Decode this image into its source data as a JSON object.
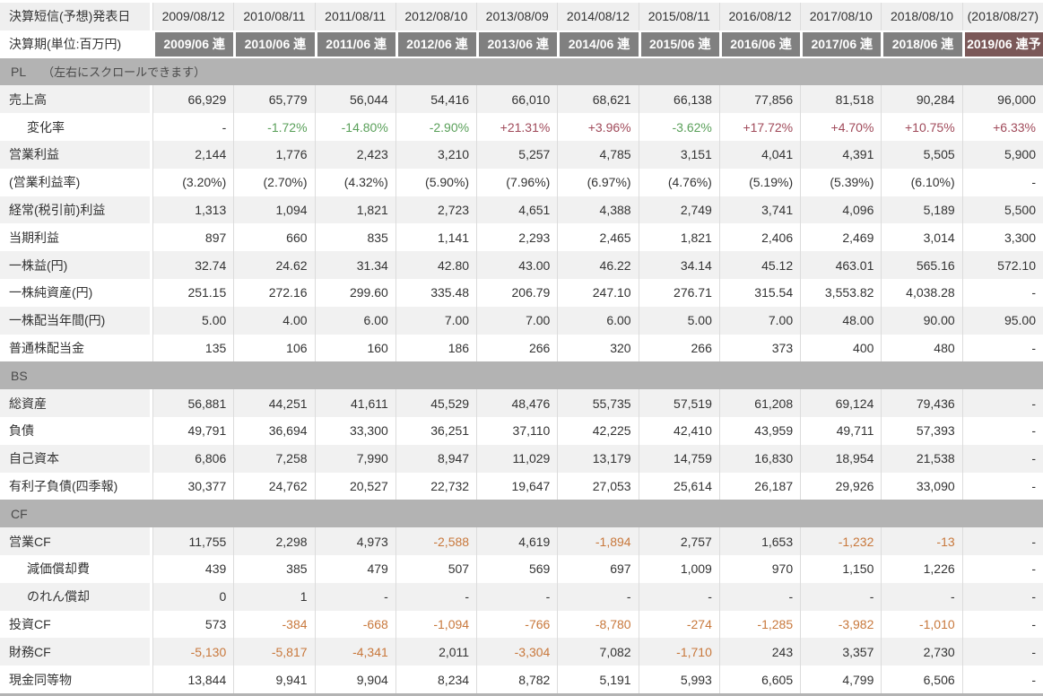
{
  "colors": {
    "text": "#333333",
    "header_dark_bg": "#808080",
    "header_forecast_bg": "#7b5858",
    "section_bar_bg": "#b3b3b3",
    "band_bg": "#f1f1f1",
    "announcement_bg": "#efefef",
    "positive_pct": "#a04a5a",
    "negative_pct": "#5aa05a",
    "negative_cf": "#c8783c"
  },
  "table": {
    "announcement": {
      "label": "決算短信(予想)発表日",
      "dates": [
        "2009/08/12",
        "2010/08/11",
        "2011/08/11",
        "2012/08/10",
        "2013/08/09",
        "2014/08/12",
        "2015/08/11",
        "2016/08/12",
        "2017/08/10",
        "2018/08/10",
        "(2018/08/27)"
      ]
    },
    "periods": {
      "label": "決算期(単位:百万円)",
      "cells": [
        "2009/06 連",
        "2010/06 連",
        "2011/06 連",
        "2012/06 連",
        "2013/06 連",
        "2014/06 連",
        "2015/06 連",
        "2016/06 連",
        "2017/06 連",
        "2018/06 連",
        "2019/06 連予"
      ],
      "forecast_index": 10
    },
    "sections": [
      {
        "id": "pl",
        "title": "PL",
        "note": "（左右にスクロールできます）",
        "rows": [
          {
            "label": "売上高",
            "indent": false,
            "style": "plain",
            "values": [
              "66,929",
              "65,779",
              "56,044",
              "54,416",
              "66,010",
              "68,621",
              "66,138",
              "77,856",
              "81,518",
              "90,284",
              "96,000"
            ]
          },
          {
            "label": "変化率",
            "indent": true,
            "style": "percent",
            "values": [
              "-",
              "-1.72%",
              "-14.80%",
              "-2.90%",
              "+21.31%",
              "+3.96%",
              "-3.62%",
              "+17.72%",
              "+4.70%",
              "+10.75%",
              "+6.33%"
            ]
          },
          {
            "label": "営業利益",
            "indent": false,
            "style": "plain",
            "values": [
              "2,144",
              "1,776",
              "2,423",
              "3,210",
              "5,257",
              "4,785",
              "3,151",
              "4,041",
              "4,391",
              "5,505",
              "5,900"
            ]
          },
          {
            "label": "(営業利益率)",
            "indent": false,
            "style": "neutral",
            "values": [
              "(3.20%)",
              "(2.70%)",
              "(4.32%)",
              "(5.90%)",
              "(7.96%)",
              "(6.97%)",
              "(4.76%)",
              "(5.19%)",
              "(5.39%)",
              "(6.10%)",
              "-"
            ]
          },
          {
            "label": "経常(税引前)利益",
            "indent": false,
            "style": "plain",
            "values": [
              "1,313",
              "1,094",
              "1,821",
              "2,723",
              "4,651",
              "4,388",
              "2,749",
              "3,741",
              "4,096",
              "5,189",
              "5,500"
            ]
          },
          {
            "label": "当期利益",
            "indent": false,
            "style": "plain",
            "values": [
              "897",
              "660",
              "835",
              "1,141",
              "2,293",
              "2,465",
              "1,821",
              "2,406",
              "2,469",
              "3,014",
              "3,300"
            ]
          },
          {
            "label": "一株益(円)",
            "indent": false,
            "style": "plain",
            "values": [
              "32.74",
              "24.62",
              "31.34",
              "42.80",
              "43.00",
              "46.22",
              "34.14",
              "45.12",
              "463.01",
              "565.16",
              "572.10"
            ]
          },
          {
            "label": "一株純資産(円)",
            "indent": false,
            "style": "plain",
            "values": [
              "251.15",
              "272.16",
              "299.60",
              "335.48",
              "206.79",
              "247.10",
              "276.71",
              "315.54",
              "3,553.82",
              "4,038.28",
              "-"
            ]
          },
          {
            "label": "一株配当年間(円)",
            "indent": false,
            "style": "plain",
            "values": [
              "5.00",
              "4.00",
              "6.00",
              "7.00",
              "7.00",
              "6.00",
              "5.00",
              "7.00",
              "48.00",
              "90.00",
              "95.00"
            ]
          },
          {
            "label": "普通株配当金",
            "indent": false,
            "style": "plain",
            "values": [
              "135",
              "106",
              "160",
              "186",
              "266",
              "320",
              "266",
              "373",
              "400",
              "480",
              "-"
            ]
          }
        ]
      },
      {
        "id": "bs",
        "title": "BS",
        "note": "",
        "rows": [
          {
            "label": "総資産",
            "indent": false,
            "style": "plain",
            "values": [
              "56,881",
              "44,251",
              "41,611",
              "45,529",
              "48,476",
              "55,735",
              "57,519",
              "61,208",
              "69,124",
              "79,436",
              "-"
            ]
          },
          {
            "label": "負債",
            "indent": false,
            "style": "plain",
            "values": [
              "49,791",
              "36,694",
              "33,300",
              "36,251",
              "37,110",
              "42,225",
              "42,410",
              "43,959",
              "49,711",
              "57,393",
              "-"
            ]
          },
          {
            "label": "自己資本",
            "indent": false,
            "style": "plain",
            "values": [
              "6,806",
              "7,258",
              "7,990",
              "8,947",
              "11,029",
              "13,179",
              "14,759",
              "16,830",
              "18,954",
              "21,538",
              "-"
            ]
          },
          {
            "label": "有利子負債(四季報)",
            "indent": false,
            "style": "plain",
            "values": [
              "30,377",
              "24,762",
              "20,527",
              "22,732",
              "19,647",
              "27,053",
              "25,614",
              "26,187",
              "29,926",
              "33,090",
              "-"
            ]
          }
        ]
      },
      {
        "id": "cf",
        "title": "CF",
        "note": "",
        "rows": [
          {
            "label": "営業CF",
            "indent": false,
            "style": "plain",
            "values": [
              "11,755",
              "2,298",
              "4,973",
              "-2,588",
              "4,619",
              "-1,894",
              "2,757",
              "1,653",
              "-1,232",
              "-13",
              "-"
            ]
          },
          {
            "label": "減価償却費",
            "indent": true,
            "style": "plain",
            "values": [
              "439",
              "385",
              "479",
              "507",
              "569",
              "697",
              "1,009",
              "970",
              "1,150",
              "1,226",
              "-"
            ]
          },
          {
            "label": "のれん償却",
            "indent": true,
            "style": "plain",
            "values": [
              "0",
              "1",
              "-",
              "-",
              "-",
              "-",
              "-",
              "-",
              "-",
              "-",
              "-"
            ]
          },
          {
            "label": "投資CF",
            "indent": false,
            "style": "plain",
            "values": [
              "573",
              "-384",
              "-668",
              "-1,094",
              "-766",
              "-8,780",
              "-274",
              "-1,285",
              "-3,982",
              "-1,010",
              "-"
            ]
          },
          {
            "label": "財務CF",
            "indent": false,
            "style": "plain",
            "values": [
              "-5,130",
              "-5,817",
              "-4,341",
              "2,011",
              "-3,304",
              "7,082",
              "-1,710",
              "243",
              "3,357",
              "2,730",
              "-"
            ]
          },
          {
            "label": "現金同等物",
            "indent": false,
            "style": "plain",
            "values": [
              "13,844",
              "9,941",
              "9,904",
              "8,234",
              "8,782",
              "5,191",
              "5,993",
              "6,605",
              "4,799",
              "6,506",
              "-"
            ]
          }
        ]
      }
    ]
  }
}
